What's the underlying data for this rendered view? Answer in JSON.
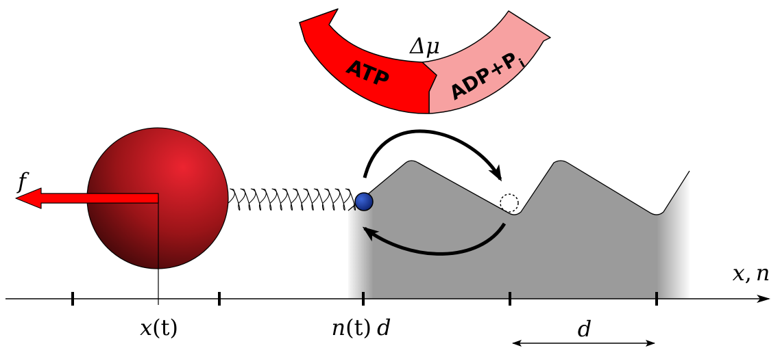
{
  "cycle": {
    "delta_mu_label": "Δμ",
    "atp_label": "ATP",
    "adp_label": "ADP+P",
    "adp_subscript": "i",
    "colors": {
      "atp": "#ff0000",
      "adp": "#f7a1a1",
      "outline": "#000000"
    }
  },
  "force": {
    "label": "f",
    "color": "#ff0000"
  },
  "axis": {
    "label_x": "x",
    "label_sep": ",",
    "label_n": "n",
    "cargo_position_label": "x",
    "cargo_position_arg": "(t)",
    "motor_position_label": "n",
    "motor_position_arg": "(t)",
    "motor_position_unit": "d",
    "period_label": "d"
  },
  "colors": {
    "cargo_light": "#e3202a",
    "cargo_dark": "#3e0809",
    "motor_head": "#1a3fa8",
    "track": "#9b9b9b"
  }
}
